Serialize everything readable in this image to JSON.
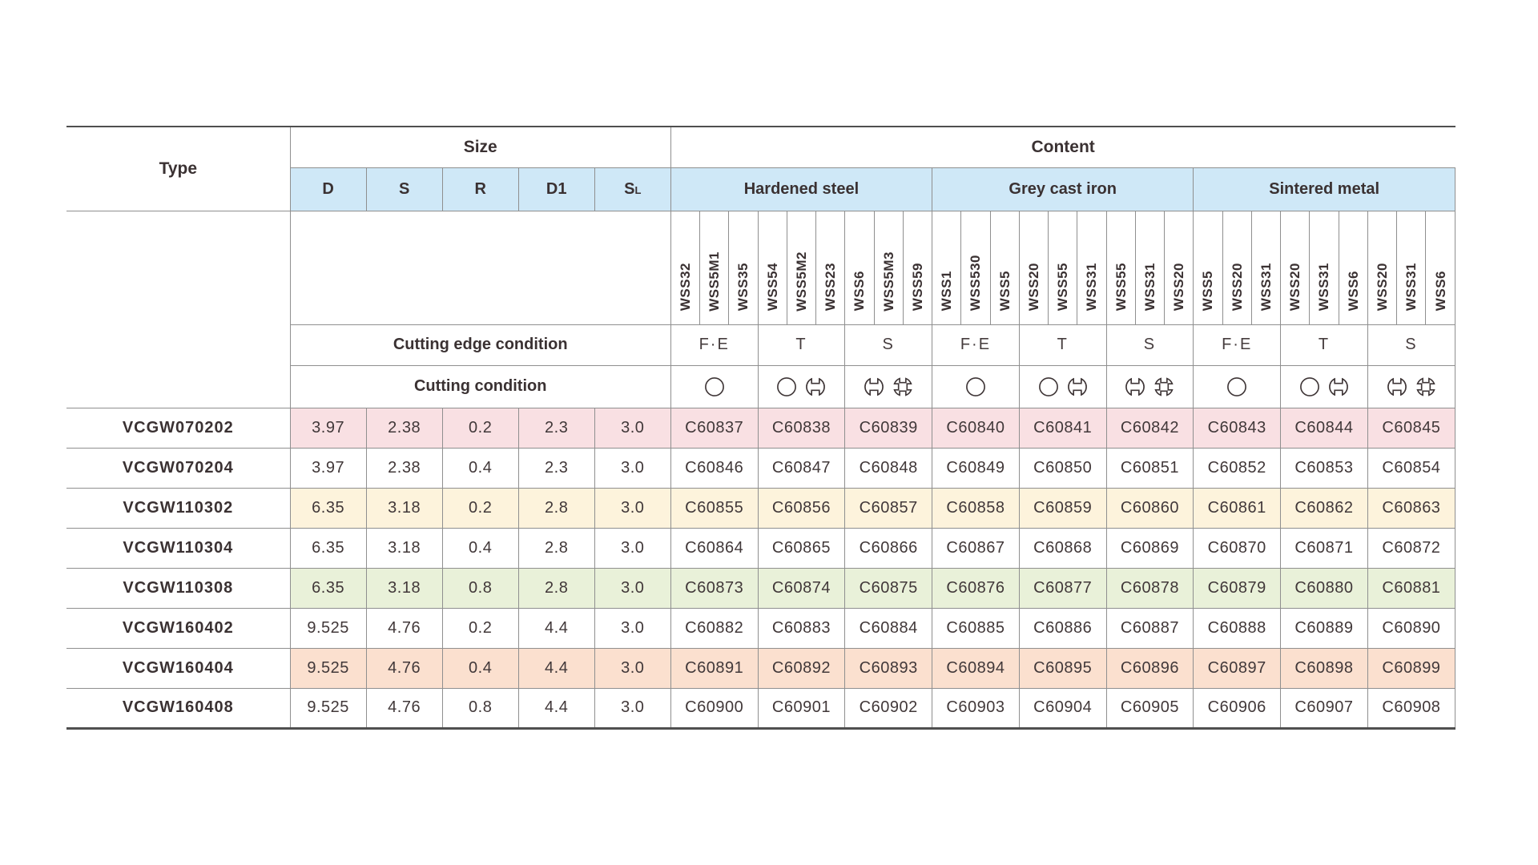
{
  "page": {
    "background": "#ffffff"
  },
  "table": {
    "type_header": "Type",
    "size_header": "Size",
    "content_header": "Content",
    "size_columns": [
      "D",
      "S",
      "R",
      "D1",
      "SL"
    ],
    "groups": [
      {
        "label": "Hardened steel",
        "wss_columns": [
          "WSS32",
          "WSS5M1",
          "WSS35",
          "WSS54",
          "WSS5M2",
          "WSS23",
          "WSS6",
          "WSS5M3",
          "WSS59"
        ]
      },
      {
        "label": "Grey cast iron",
        "wss_columns": [
          "WSS1",
          "WSS530",
          "WSS5",
          "WSS20",
          "WSS55",
          "WSS31",
          "WSS55",
          "WSS31",
          "WSS20"
        ]
      },
      {
        "label": "Sintered metal",
        "wss_columns": [
          "WSS5",
          "WSS20",
          "WSS31",
          "WSS20",
          "WSS31",
          "WSS6",
          "WSS20",
          "WSS31",
          "WSS6"
        ]
      }
    ],
    "cutting_edge_row_label": "Cutting edge condition",
    "cutting_condition_row_label": "Cutting condition",
    "edge_conditions": [
      "F·E",
      "T",
      "S"
    ],
    "condition_symbols": [
      [
        "continuous-cut-icon"
      ],
      [
        "continuous-cut-icon",
        "interrupted-cut-icon"
      ],
      [
        "interrupted-cut-icon",
        "heavy-interrupted-cut-icon"
      ]
    ],
    "rows": [
      {
        "type": "VCGW070202",
        "size_values": [
          "3.97",
          "2.38",
          "0.2",
          "2.3",
          "3.0"
        ],
        "codes": [
          "C60837",
          "C60838",
          "C60839",
          "C60840",
          "C60841",
          "C60842",
          "C60843",
          "C60844",
          "C60845"
        ],
        "highlight": "pink"
      },
      {
        "type": "VCGW070204",
        "size_values": [
          "3.97",
          "2.38",
          "0.4",
          "2.3",
          "3.0"
        ],
        "codes": [
          "C60846",
          "C60847",
          "C60848",
          "C60849",
          "C60850",
          "C60851",
          "C60852",
          "C60853",
          "C60854"
        ],
        "highlight": "none"
      },
      {
        "type": "VCGW110302",
        "size_values": [
          "6.35",
          "3.18",
          "0.2",
          "2.8",
          "3.0"
        ],
        "codes": [
          "C60855",
          "C60856",
          "C60857",
          "C60858",
          "C60859",
          "C60860",
          "C60861",
          "C60862",
          "C60863"
        ],
        "highlight": "cream"
      },
      {
        "type": "VCGW110304",
        "size_values": [
          "6.35",
          "3.18",
          "0.4",
          "2.8",
          "3.0"
        ],
        "codes": [
          "C60864",
          "C60865",
          "C60866",
          "C60867",
          "C60868",
          "C60869",
          "C60870",
          "C60871",
          "C60872"
        ],
        "highlight": "none"
      },
      {
        "type": "VCGW110308",
        "size_values": [
          "6.35",
          "3.18",
          "0.8",
          "2.8",
          "3.0"
        ],
        "codes": [
          "C60873",
          "C60874",
          "C60875",
          "C60876",
          "C60877",
          "C60878",
          "C60879",
          "C60880",
          "C60881"
        ],
        "highlight": "green"
      },
      {
        "type": "VCGW160402",
        "size_values": [
          "9.525",
          "4.76",
          "0.2",
          "4.4",
          "3.0"
        ],
        "codes": [
          "C60882",
          "C60883",
          "C60884",
          "C60885",
          "C60886",
          "C60887",
          "C60888",
          "C60889",
          "C60890"
        ],
        "highlight": "none"
      },
      {
        "type": "VCGW160404",
        "size_values": [
          "9.525",
          "4.76",
          "0.4",
          "4.4",
          "3.0"
        ],
        "codes": [
          "C60891",
          "C60892",
          "C60893",
          "C60894",
          "C60895",
          "C60896",
          "C60897",
          "C60898",
          "C60899"
        ],
        "highlight": "peach"
      },
      {
        "type": "VCGW160408",
        "size_values": [
          "9.525",
          "4.76",
          "0.8",
          "4.4",
          "3.0"
        ],
        "codes": [
          "C60900",
          "C60901",
          "C60902",
          "C60903",
          "C60904",
          "C60905",
          "C60906",
          "C60907",
          "C60908"
        ],
        "highlight": "none"
      }
    ],
    "colors": {
      "header_blue": "#cfe8f7",
      "row_pink": "#f9e0e3",
      "row_cream": "#fdf3dc",
      "row_green": "#e9f1d9",
      "row_peach": "#fbe0cf",
      "text": "#3a3132",
      "grid_line": "#8f8f8f",
      "outer_line": "#4f4f4f"
    }
  }
}
